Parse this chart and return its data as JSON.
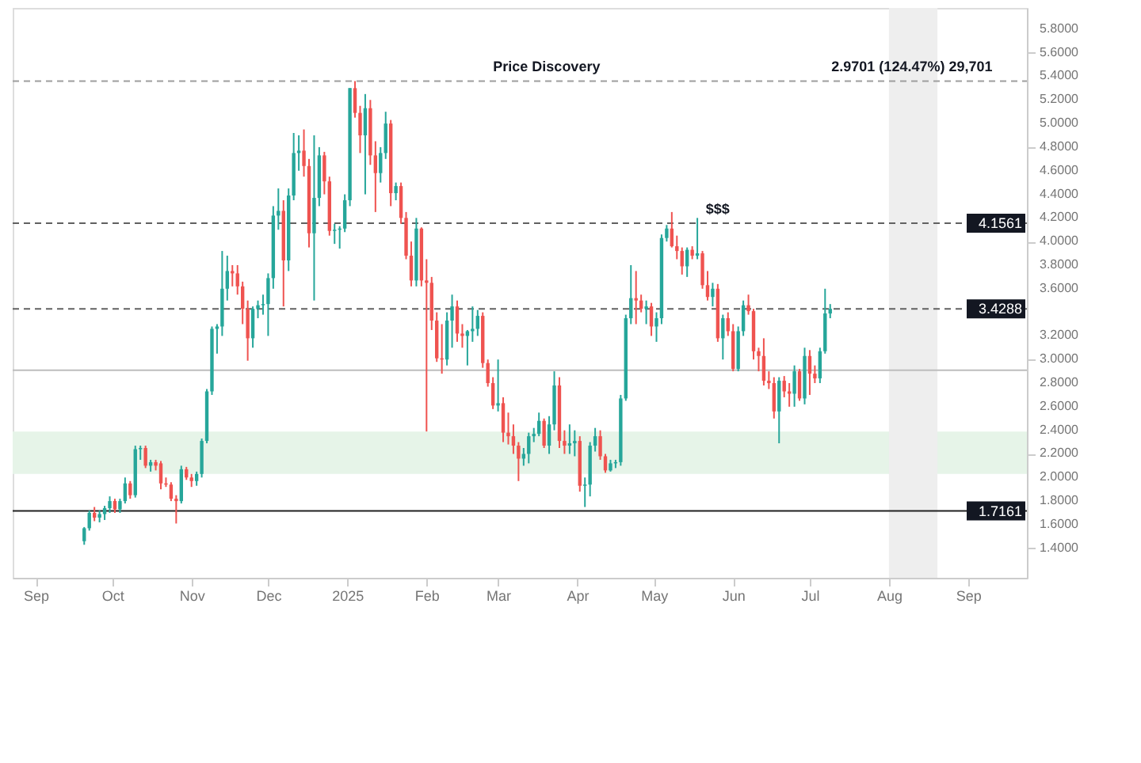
{
  "chart_data": {
    "type": "candlestick",
    "x": [
      "2024-09-20",
      "2024-09-22",
      "2024-09-24",
      "2024-09-26",
      "2024-09-28",
      "2024-09-30",
      "2024-10-02",
      "2024-10-04",
      "2024-10-06",
      "2024-10-08",
      "2024-10-10",
      "2024-10-12",
      "2024-10-14",
      "2024-10-16",
      "2024-10-18",
      "2024-10-20",
      "2024-10-22",
      "2024-10-24",
      "2024-10-26",
      "2024-10-28",
      "2024-10-30",
      "2024-11-01",
      "2024-11-03",
      "2024-11-05",
      "2024-11-07",
      "2024-11-09",
      "2024-11-11",
      "2024-11-13",
      "2024-11-15",
      "2024-11-17",
      "2024-11-19",
      "2024-11-21",
      "2024-11-23",
      "2024-11-25",
      "2024-11-27",
      "2024-11-29",
      "2024-12-01",
      "2024-12-03",
      "2024-12-05",
      "2024-12-07",
      "2024-12-09",
      "2024-12-11",
      "2024-12-13",
      "2024-12-15",
      "2024-12-17",
      "2024-12-19",
      "2024-12-21",
      "2024-12-23",
      "2024-12-25",
      "2024-12-27",
      "2024-12-29",
      "2024-12-31",
      "2025-01-02",
      "2025-01-04",
      "2025-01-06",
      "2025-01-08",
      "2025-01-10",
      "2025-01-12",
      "2025-01-14",
      "2025-01-16",
      "2025-01-18",
      "2025-01-20",
      "2025-01-22",
      "2025-01-24",
      "2025-01-26",
      "2025-01-28",
      "2025-01-30",
      "2025-02-01",
      "2025-02-03",
      "2025-02-05",
      "2025-02-07",
      "2025-02-09",
      "2025-02-11",
      "2025-02-13",
      "2025-02-15",
      "2025-02-17",
      "2025-02-19",
      "2025-02-21",
      "2025-02-23",
      "2025-02-25",
      "2025-02-27",
      "2025-03-01",
      "2025-03-03",
      "2025-03-05",
      "2025-03-07",
      "2025-03-09",
      "2025-03-11",
      "2025-03-13",
      "2025-03-15",
      "2025-03-17",
      "2025-03-19",
      "2025-03-21",
      "2025-03-23",
      "2025-03-25",
      "2025-03-27",
      "2025-03-29",
      "2025-03-31",
      "2025-04-02",
      "2025-04-04",
      "2025-04-06",
      "2025-04-08",
      "2025-04-10",
      "2025-04-12",
      "2025-04-14",
      "2025-04-16",
      "2025-04-18",
      "2025-04-20",
      "2025-04-22",
      "2025-04-24",
      "2025-04-26",
      "2025-04-28",
      "2025-04-30",
      "2025-05-02",
      "2025-05-04",
      "2025-05-06",
      "2025-05-08",
      "2025-05-10",
      "2025-05-12",
      "2025-05-14",
      "2025-05-16",
      "2025-05-18",
      "2025-05-20",
      "2025-05-22",
      "2025-05-24",
      "2025-05-26",
      "2025-05-28",
      "2025-05-30",
      "2025-06-01",
      "2025-06-03",
      "2025-06-05",
      "2025-06-07",
      "2025-06-09",
      "2025-06-11",
      "2025-06-13",
      "2025-06-15",
      "2025-06-17",
      "2025-06-19",
      "2025-06-21",
      "2025-06-23",
      "2025-06-25",
      "2025-06-27",
      "2025-06-29",
      "2025-07-01",
      "2025-07-03",
      "2025-07-05",
      "2025-07-07",
      "2025-07-09"
    ],
    "ohlc": [
      [
        1.46,
        1.58,
        1.43,
        1.57
      ],
      [
        1.57,
        1.72,
        1.55,
        1.7
      ],
      [
        1.7,
        1.75,
        1.63,
        1.66
      ],
      [
        1.66,
        1.72,
        1.62,
        1.69
      ],
      [
        1.69,
        1.76,
        1.64,
        1.74
      ],
      [
        1.74,
        1.84,
        1.7,
        1.8
      ],
      [
        1.8,
        1.82,
        1.7,
        1.73
      ],
      [
        1.73,
        1.82,
        1.7,
        1.8
      ],
      [
        1.8,
        2.0,
        1.78,
        1.95
      ],
      [
        1.95,
        1.97,
        1.82,
        1.85
      ],
      [
        1.85,
        2.27,
        1.83,
        2.24
      ],
      [
        2.24,
        2.27,
        2.15,
        2.25
      ],
      [
        2.25,
        2.27,
        2.08,
        2.1
      ],
      [
        2.1,
        2.15,
        2.05,
        2.13
      ],
      [
        2.13,
        2.15,
        2.06,
        2.1
      ],
      [
        2.12,
        2.14,
        1.9,
        1.95
      ],
      [
        1.95,
        2.0,
        1.92,
        1.94
      ],
      [
        1.94,
        1.96,
        1.8,
        1.82
      ],
      [
        1.82,
        1.85,
        1.61,
        1.8
      ],
      [
        1.8,
        2.1,
        1.78,
        2.07
      ],
      [
        2.07,
        2.09,
        1.98,
        2.0
      ],
      [
        2.0,
        2.03,
        1.92,
        1.97
      ],
      [
        1.97,
        2.05,
        1.93,
        2.03
      ],
      [
        2.03,
        2.33,
        2.0,
        2.31
      ],
      [
        2.31,
        2.75,
        2.29,
        2.73
      ],
      [
        2.73,
        3.28,
        2.7,
        3.26
      ],
      [
        3.26,
        3.3,
        3.05,
        3.28
      ],
      [
        3.28,
        3.92,
        3.2,
        3.6
      ],
      [
        3.6,
        3.88,
        3.5,
        3.75
      ],
      [
        3.75,
        3.8,
        3.62,
        3.73
      ],
      [
        3.73,
        3.8,
        3.55,
        3.62
      ],
      [
        3.62,
        3.66,
        3.3,
        3.43
      ],
      [
        3.43,
        3.5,
        2.99,
        3.18
      ],
      [
        3.18,
        3.45,
        3.1,
        3.43
      ],
      [
        3.43,
        3.5,
        3.35,
        3.46
      ],
      [
        3.46,
        3.55,
        3.38,
        3.47
      ],
      [
        3.47,
        3.73,
        3.2,
        3.69
      ],
      [
        3.69,
        4.3,
        3.6,
        4.22
      ],
      [
        4.22,
        4.45,
        4.1,
        4.26
      ],
      [
        4.26,
        4.35,
        3.45,
        3.84
      ],
      [
        3.84,
        4.45,
        3.75,
        4.39
      ],
      [
        4.39,
        4.92,
        4.35,
        4.75
      ],
      [
        4.75,
        4.9,
        4.6,
        4.77
      ],
      [
        4.77,
        4.95,
        4.55,
        4.64
      ],
      [
        4.64,
        4.7,
        3.95,
        4.07
      ],
      [
        4.07,
        4.9,
        3.5,
        4.37
      ],
      [
        4.37,
        4.8,
        4.3,
        4.73
      ],
      [
        4.73,
        4.76,
        4.4,
        4.51
      ],
      [
        4.51,
        4.55,
        4.05,
        4.09
      ],
      [
        4.09,
        4.15,
        3.98,
        4.1
      ],
      [
        4.1,
        4.13,
        3.94,
        4.11
      ],
      [
        4.11,
        4.4,
        4.08,
        4.35
      ],
      [
        4.35,
        5.3,
        4.3,
        5.3
      ],
      [
        5.3,
        5.36,
        5.05,
        5.09
      ],
      [
        5.09,
        5.15,
        4.75,
        4.9
      ],
      [
        4.9,
        5.25,
        4.4,
        5.13
      ],
      [
        5.13,
        5.2,
        4.65,
        4.73
      ],
      [
        4.73,
        4.85,
        4.25,
        4.58
      ],
      [
        4.58,
        4.8,
        4.5,
        4.75
      ],
      [
        4.75,
        5.1,
        4.7,
        5.0
      ],
      [
        5.0,
        5.03,
        4.3,
        4.41
      ],
      [
        4.41,
        4.5,
        4.35,
        4.47
      ],
      [
        4.47,
        4.5,
        4.15,
        4.2
      ],
      [
        4.2,
        4.25,
        3.85,
        3.88
      ],
      [
        3.88,
        4.0,
        3.62,
        3.67
      ],
      [
        3.67,
        4.2,
        3.62,
        4.11
      ],
      [
        4.11,
        4.12,
        3.62,
        3.67
      ],
      [
        3.67,
        3.85,
        2.39,
        3.65
      ],
      [
        3.65,
        3.7,
        3.25,
        3.33
      ],
      [
        3.33,
        3.4,
        2.98,
        3.01
      ],
      [
        3.01,
        3.3,
        2.88,
        3.0
      ],
      [
        3.0,
        3.4,
        2.95,
        3.33
      ],
      [
        3.33,
        3.55,
        3.1,
        3.45
      ],
      [
        3.45,
        3.5,
        3.15,
        3.22
      ],
      [
        3.22,
        3.3,
        3.1,
        3.2
      ],
      [
        3.2,
        3.25,
        2.95,
        3.24
      ],
      [
        3.24,
        3.45,
        3.15,
        3.26
      ],
      [
        3.26,
        3.42,
        3.2,
        3.37
      ],
      [
        3.37,
        3.4,
        2.93,
        2.97
      ],
      [
        2.97,
        3.0,
        2.77,
        2.8
      ],
      [
        2.8,
        2.85,
        2.58,
        2.61
      ],
      [
        2.61,
        3.0,
        2.56,
        2.63
      ],
      [
        2.63,
        2.68,
        2.3,
        2.38
      ],
      [
        2.38,
        2.55,
        2.28,
        2.35
      ],
      [
        2.35,
        2.45,
        2.2,
        2.27
      ],
      [
        2.27,
        2.3,
        1.97,
        2.16
      ],
      [
        2.16,
        2.25,
        2.1,
        2.2
      ],
      [
        2.2,
        2.38,
        2.12,
        2.35
      ],
      [
        2.35,
        2.42,
        2.3,
        2.37
      ],
      [
        2.37,
        2.55,
        2.35,
        2.48
      ],
      [
        2.48,
        2.5,
        2.25,
        2.27
      ],
      [
        2.27,
        2.52,
        2.2,
        2.45
      ],
      [
        2.45,
        2.9,
        2.4,
        2.78
      ],
      [
        2.78,
        2.85,
        2.25,
        2.31
      ],
      [
        2.31,
        2.4,
        2.2,
        2.27
      ],
      [
        2.27,
        2.45,
        2.2,
        2.29
      ],
      [
        2.29,
        2.4,
        2.18,
        2.31
      ],
      [
        2.31,
        2.35,
        1.88,
        1.93
      ],
      [
        1.93,
        2.0,
        1.75,
        1.94
      ],
      [
        1.94,
        2.3,
        1.84,
        2.27
      ],
      [
        2.27,
        2.42,
        2.22,
        2.35
      ],
      [
        2.35,
        2.4,
        2.15,
        2.18
      ],
      [
        2.18,
        2.2,
        2.04,
        2.06
      ],
      [
        2.06,
        2.15,
        2.05,
        2.12
      ],
      [
        2.12,
        2.15,
        2.08,
        2.13
      ],
      [
        2.13,
        2.7,
        2.1,
        2.67
      ],
      [
        2.67,
        3.38,
        2.65,
        3.35
      ],
      [
        3.35,
        3.8,
        3.3,
        3.52
      ],
      [
        3.52,
        3.75,
        3.3,
        3.5
      ],
      [
        3.5,
        3.55,
        3.4,
        3.43
      ],
      [
        3.43,
        3.5,
        3.3,
        3.45
      ],
      [
        3.45,
        3.48,
        3.2,
        3.28
      ],
      [
        3.28,
        3.4,
        3.15,
        3.35
      ],
      [
        3.35,
        4.06,
        3.3,
        4.03
      ],
      [
        4.03,
        4.14,
        4.0,
        4.11
      ],
      [
        4.11,
        4.25,
        3.95,
        3.96
      ],
      [
        3.96,
        4.05,
        3.85,
        3.92
      ],
      [
        3.92,
        3.95,
        3.72,
        3.79
      ],
      [
        3.79,
        3.95,
        3.7,
        3.93
      ],
      [
        3.93,
        3.96,
        3.85,
        3.88
      ],
      [
        3.88,
        4.2,
        3.85,
        3.9
      ],
      [
        3.9,
        3.92,
        3.6,
        3.63
      ],
      [
        3.63,
        3.75,
        3.5,
        3.53
      ],
      [
        3.53,
        3.65,
        3.45,
        3.6
      ],
      [
        3.6,
        3.64,
        3.15,
        3.18
      ],
      [
        3.18,
        3.38,
        3.0,
        3.35
      ],
      [
        3.35,
        3.4,
        3.2,
        3.24
      ],
      [
        3.24,
        3.3,
        2.9,
        2.92
      ],
      [
        2.92,
        3.28,
        2.9,
        3.24
      ],
      [
        3.24,
        3.5,
        3.2,
        3.46
      ],
      [
        3.46,
        3.55,
        3.38,
        3.41
      ],
      [
        3.41,
        3.43,
        3.0,
        3.07
      ],
      [
        3.07,
        3.1,
        2.9,
        3.03
      ],
      [
        3.03,
        3.18,
        2.78,
        2.82
      ],
      [
        2.82,
        2.9,
        2.75,
        2.8
      ],
      [
        2.8,
        2.85,
        2.5,
        2.56
      ],
      [
        2.56,
        2.85,
        2.29,
        2.82
      ],
      [
        2.82,
        2.86,
        2.68,
        2.73
      ],
      [
        2.73,
        2.8,
        2.6,
        2.71
      ],
      [
        2.71,
        2.95,
        2.6,
        2.9
      ],
      [
        2.9,
        2.92,
        2.65,
        2.67
      ],
      [
        2.67,
        3.1,
        2.62,
        3.03
      ],
      [
        3.03,
        3.08,
        2.7,
        2.88
      ],
      [
        2.88,
        2.95,
        2.8,
        2.84
      ],
      [
        2.84,
        3.1,
        2.8,
        3.07
      ],
      [
        3.07,
        3.6,
        3.05,
        3.39
      ],
      [
        3.39,
        3.47,
        3.35,
        3.43
      ]
    ],
    "xlim": [
      "2024-08-23",
      "2025-09-24"
    ],
    "xticks": [
      {
        "value": "2024-09-01",
        "label": "Sep"
      },
      {
        "value": "2024-10-01",
        "label": "Oct"
      },
      {
        "value": "2024-11-01",
        "label": "Nov"
      },
      {
        "value": "2024-12-01",
        "label": "Dec"
      },
      {
        "value": "2025-01-01",
        "label": "2025"
      },
      {
        "value": "2025-02-01",
        "label": "Feb"
      },
      {
        "value": "2025-03-01",
        "label": "Mar"
      },
      {
        "value": "2025-04-01",
        "label": "Apr"
      },
      {
        "value": "2025-05-01",
        "label": "May"
      },
      {
        "value": "2025-06-01",
        "label": "Jun"
      },
      {
        "value": "2025-07-01",
        "label": "Jul"
      },
      {
        "value": "2025-08-01",
        "label": "Aug"
      },
      {
        "value": "2025-09-01",
        "label": "Sep"
      }
    ],
    "ylim": [
      1.15,
      5.98
    ],
    "yticks": [
      {
        "value": 1.4,
        "label": "1.4000"
      },
      {
        "value": 1.6,
        "label": "1.6000"
      },
      {
        "value": 1.8,
        "label": "1.8000"
      },
      {
        "value": 2.0,
        "label": "2.0000"
      },
      {
        "value": 2.2,
        "label": "2.2000"
      },
      {
        "value": 2.4,
        "label": "2.4000"
      },
      {
        "value": 2.6,
        "label": "2.6000"
      },
      {
        "value": 2.8,
        "label": "2.8000"
      },
      {
        "value": 3.0,
        "label": "3.0000"
      },
      {
        "value": 3.2,
        "label": "3.2000"
      },
      {
        "value": 3.6,
        "label": "3.6000"
      },
      {
        "value": 3.8,
        "label": "3.8000"
      },
      {
        "value": 4.0,
        "label": "4.0000"
      },
      {
        "value": 4.2,
        "label": "4.2000"
      },
      {
        "value": 4.4,
        "label": "4.4000"
      },
      {
        "value": 4.6,
        "label": "4.6000"
      },
      {
        "value": 4.8,
        "label": "4.8000"
      },
      {
        "value": 5.0,
        "label": "5.0000"
      },
      {
        "value": 5.2,
        "label": "5.2000"
      },
      {
        "value": 5.4,
        "label": "5.4000"
      },
      {
        "value": 5.6,
        "label": "5.6000"
      },
      {
        "value": 5.8,
        "label": "5.8000"
      }
    ],
    "ref_lines": [
      {
        "axis": "y",
        "value": 5.36,
        "line_style": "dashed",
        "color": "#9e9e9e"
      },
      {
        "axis": "y",
        "value": 4.1561,
        "label": "4.1561",
        "line_style": "dashed",
        "color": "#616161"
      },
      {
        "axis": "y",
        "value": 3.4288,
        "label": "3.4288",
        "line_style": "dashed",
        "color": "#616161"
      },
      {
        "axis": "y",
        "value": 2.91,
        "line_style": "solid",
        "color": "#bdbdbd"
      },
      {
        "axis": "y",
        "value": 1.7161,
        "label": "1.7161",
        "line_style": "solid",
        "color": "#212121"
      }
    ],
    "bands": [
      {
        "axis": "y",
        "from": 2.03,
        "to": 2.39,
        "color": "#e6f4e8"
      },
      {
        "axis": "x",
        "from": "2025-08-01",
        "to": "2025-08-20",
        "color": "#eeeeee"
      }
    ],
    "annotations": [
      {
        "text": "Price Discovery",
        "x": "2025-03-20",
        "y": 5.36
      },
      {
        "text": "$$$",
        "x": "2025-05-26",
        "y": 4.1561
      },
      {
        "text": "2.9701 (124.47%) 29,701",
        "x": "2025-08-10",
        "y": 5.36
      }
    ]
  }
}
